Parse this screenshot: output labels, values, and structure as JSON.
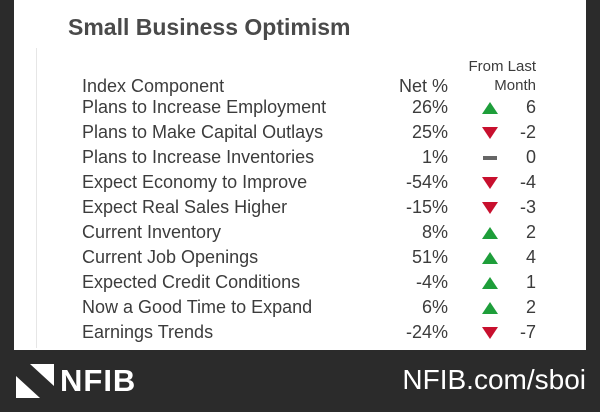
{
  "title": "Small Business Optimism",
  "headers": {
    "component": "Index Component",
    "net": "Net %",
    "change_line1": "From Last",
    "change_line2": "Month"
  },
  "rows": [
    {
      "component": "Plans to Increase Employment",
      "net": "26%",
      "change": "6",
      "direction": "up"
    },
    {
      "component": "Plans to Make Capital Outlays",
      "net": "25%",
      "change": "-2",
      "direction": "down"
    },
    {
      "component": "Plans to Increase Inventories",
      "net": "1%",
      "change": "0",
      "direction": "flat"
    },
    {
      "component": "Expect Economy to Improve",
      "net": "-54%",
      "change": "-4",
      "direction": "down"
    },
    {
      "component": "Expect Real Sales Higher",
      "net": "-15%",
      "change": "-3",
      "direction": "down"
    },
    {
      "component": "Current Inventory",
      "net": "8%",
      "change": "2",
      "direction": "up"
    },
    {
      "component": "Current Job Openings",
      "net": "51%",
      "change": "4",
      "direction": "up"
    },
    {
      "component": "Expected Credit Conditions",
      "net": "-4%",
      "change": "1",
      "direction": "up"
    },
    {
      "component": "Now a Good Time to Expand",
      "net": "6%",
      "change": "2",
      "direction": "up"
    },
    {
      "component": "Earnings Trends",
      "net": "-24%",
      "change": "-7",
      "direction": "down"
    }
  ],
  "footer": {
    "logo_text": "NFIB",
    "url": "NFIB.com/sboi"
  },
  "colors": {
    "up": "#1e9e3a",
    "down": "#c8102e",
    "flat": "#666666"
  },
  "icons": {
    "up": "triangle-up-icon",
    "down": "triangle-down-icon",
    "flat": "dash-icon"
  }
}
